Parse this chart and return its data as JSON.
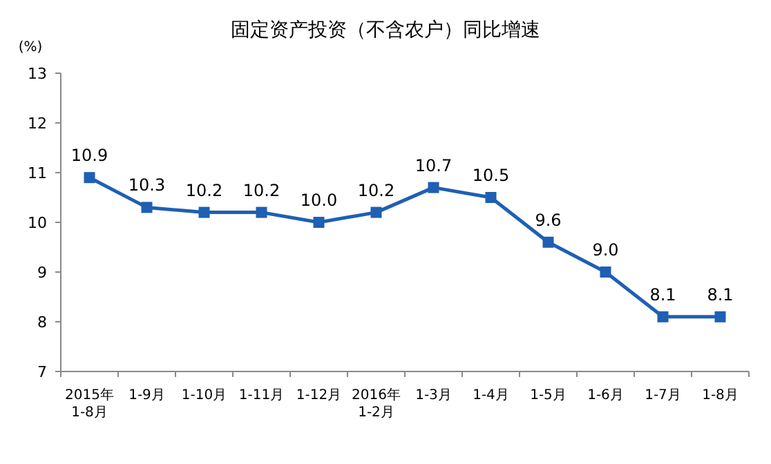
{
  "chart_data": {
    "type": "line",
    "title": "固定资产投资（不含农户）同比增速",
    "ylabel": "(%)",
    "categories": [
      "2015年\n1-8月",
      "1-9月",
      "1-10月",
      "1-11月",
      "1-12月",
      "2016年\n1-2月",
      "1-3月",
      "1-4月",
      "1-5月",
      "1-6月",
      "1-7月",
      "1-8月"
    ],
    "series": [
      {
        "color": "#1f5fb4",
        "values": [
          10.9,
          10.3,
          10.2,
          10.2,
          10.0,
          10.2,
          10.7,
          10.5,
          9.6,
          9.0,
          8.1,
          8.1
        ],
        "value_labels": [
          "10.9",
          "10.3",
          "10.2",
          "10.2",
          "10.0",
          "10.2",
          "10.7",
          "10.5",
          "9.6",
          "9.0",
          "8.1",
          "8.1"
        ]
      }
    ],
    "ylim": [
      7,
      13
    ],
    "yticks": [
      7,
      8,
      9,
      10,
      11,
      12,
      13
    ],
    "marker": "square",
    "line_style": "solid"
  }
}
